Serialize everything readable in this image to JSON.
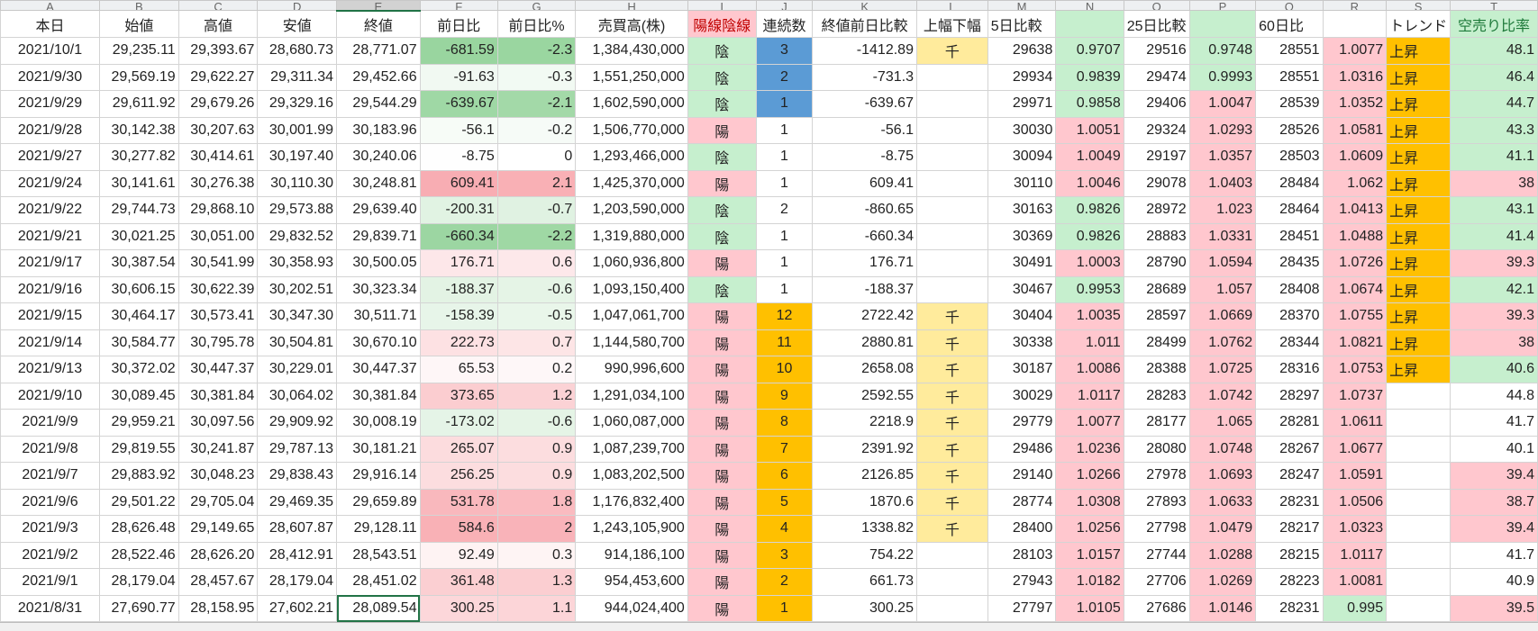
{
  "column_letters": [
    "A",
    "B",
    "C",
    "D",
    "E",
    "F",
    "G",
    "H",
    "I",
    "J",
    "K",
    "L",
    "M",
    "N",
    "O",
    "P",
    "Q",
    "R",
    "S",
    "T"
  ],
  "table": {
    "header": [
      "本日",
      "始値",
      "高値",
      "安値",
      "終値",
      "前日比",
      "前日比%",
      "売買高(株)",
      "陽線陰線",
      "連続数",
      "終値前日比較",
      "上幅下幅",
      "5日比較",
      null,
      "25日比較",
      null,
      "60日比",
      null,
      "トレンド",
      "空売り比率"
    ],
    "rows": [
      [
        "2021/10/1",
        "29,235.11",
        "29,393.67",
        "28,680.73",
        "28,771.07",
        "-681.59",
        "-2.3",
        "1,384,430,000",
        "陰",
        "3",
        "-1412.89",
        "千",
        "29638",
        "0.9707",
        "29516",
        "0.9748",
        "28551",
        "1.0077",
        "上昇",
        "48.1"
      ],
      [
        "2021/9/30",
        "29,569.19",
        "29,622.27",
        "29,311.34",
        "29,452.66",
        "-91.63",
        "-0.3",
        "1,551,250,000",
        "陰",
        "2",
        "-731.3",
        null,
        "29934",
        "0.9839",
        "29474",
        "0.9993",
        "28551",
        "1.0316",
        "上昇",
        "46.4"
      ],
      [
        "2021/9/29",
        "29,611.92",
        "29,679.26",
        "29,329.16",
        "29,544.29",
        "-639.67",
        "-2.1",
        "1,602,590,000",
        "陰",
        "1",
        "-639.67",
        null,
        "29971",
        "0.9858",
        "29406",
        "1.0047",
        "28539",
        "1.0352",
        "上昇",
        "44.7"
      ],
      [
        "2021/9/28",
        "30,142.38",
        "30,207.63",
        "30,001.99",
        "30,183.96",
        "-56.1",
        "-0.2",
        "1,506,770,000",
        "陽",
        "1",
        "-56.1",
        null,
        "30030",
        "1.0051",
        "29324",
        "1.0293",
        "28526",
        "1.0581",
        "上昇",
        "43.3"
      ],
      [
        "2021/9/27",
        "30,277.82",
        "30,414.61",
        "30,197.40",
        "30,240.06",
        "-8.75",
        "0",
        "1,293,466,000",
        "陰",
        "1",
        "-8.75",
        null,
        "30094",
        "1.0049",
        "29197",
        "1.0357",
        "28503",
        "1.0609",
        "上昇",
        "41.1"
      ],
      [
        "2021/9/24",
        "30,141.61",
        "30,276.38",
        "30,110.30",
        "30,248.81",
        "609.41",
        "2.1",
        "1,425,370,000",
        "陽",
        "1",
        "609.41",
        null,
        "30110",
        "1.0046",
        "29078",
        "1.0403",
        "28484",
        "1.062",
        "上昇",
        "38"
      ],
      [
        "2021/9/22",
        "29,744.73",
        "29,868.10",
        "29,573.88",
        "29,639.40",
        "-200.31",
        "-0.7",
        "1,203,590,000",
        "陰",
        "2",
        "-860.65",
        null,
        "30163",
        "0.9826",
        "28972",
        "1.023",
        "28464",
        "1.0413",
        "上昇",
        "43.1"
      ],
      [
        "2021/9/21",
        "30,021.25",
        "30,051.00",
        "29,832.52",
        "29,839.71",
        "-660.34",
        "-2.2",
        "1,319,880,000",
        "陰",
        "1",
        "-660.34",
        null,
        "30369",
        "0.9826",
        "28883",
        "1.0331",
        "28451",
        "1.0488",
        "上昇",
        "41.4"
      ],
      [
        "2021/9/17",
        "30,387.54",
        "30,541.99",
        "30,358.93",
        "30,500.05",
        "176.71",
        "0.6",
        "1,060,936,800",
        "陽",
        "1",
        "176.71",
        null,
        "30491",
        "1.0003",
        "28790",
        "1.0594",
        "28435",
        "1.0726",
        "上昇",
        "39.3"
      ],
      [
        "2021/9/16",
        "30,606.15",
        "30,622.39",
        "30,202.51",
        "30,323.34",
        "-188.37",
        "-0.6",
        "1,093,150,400",
        "陰",
        "1",
        "-188.37",
        null,
        "30467",
        "0.9953",
        "28689",
        "1.057",
        "28408",
        "1.0674",
        "上昇",
        "42.1"
      ],
      [
        "2021/9/15",
        "30,464.17",
        "30,573.41",
        "30,347.30",
        "30,511.71",
        "-158.39",
        "-0.5",
        "1,047,061,700",
        "陽",
        "12",
        "2722.42",
        "千",
        "30404",
        "1.0035",
        "28597",
        "1.0669",
        "28370",
        "1.0755",
        "上昇",
        "39.3"
      ],
      [
        "2021/9/14",
        "30,584.77",
        "30,795.78",
        "30,504.81",
        "30,670.10",
        "222.73",
        "0.7",
        "1,144,580,700",
        "陽",
        "11",
        "2880.81",
        "千",
        "30338",
        "1.011",
        "28499",
        "1.0762",
        "28344",
        "1.0821",
        "上昇",
        "38"
      ],
      [
        "2021/9/13",
        "30,372.02",
        "30,447.37",
        "30,229.01",
        "30,447.37",
        "65.53",
        "0.2",
        "990,996,600",
        "陽",
        "10",
        "2658.08",
        "千",
        "30187",
        "1.0086",
        "28388",
        "1.0725",
        "28316",
        "1.0753",
        "上昇",
        "40.6"
      ],
      [
        "2021/9/10",
        "30,089.45",
        "30,381.84",
        "30,064.02",
        "30,381.84",
        "373.65",
        "1.2",
        "1,291,034,100",
        "陽",
        "9",
        "2592.55",
        "千",
        "30029",
        "1.0117",
        "28283",
        "1.0742",
        "28297",
        "1.0737",
        null,
        "44.8"
      ],
      [
        "2021/9/9",
        "29,959.21",
        "30,097.56",
        "29,909.92",
        "30,008.19",
        "-173.02",
        "-0.6",
        "1,060,087,000",
        "陽",
        "8",
        "2218.9",
        "千",
        "29779",
        "1.0077",
        "28177",
        "1.065",
        "28281",
        "1.0611",
        null,
        "41.7"
      ],
      [
        "2021/9/8",
        "29,819.55",
        "30,241.87",
        "29,787.13",
        "30,181.21",
        "265.07",
        "0.9",
        "1,087,239,700",
        "陽",
        "7",
        "2391.92",
        "千",
        "29486",
        "1.0236",
        "28080",
        "1.0748",
        "28267",
        "1.0677",
        null,
        "40.1"
      ],
      [
        "2021/9/7",
        "29,883.92",
        "30,048.23",
        "29,838.43",
        "29,916.14",
        "256.25",
        "0.9",
        "1,083,202,500",
        "陽",
        "6",
        "2126.85",
        "千",
        "29140",
        "1.0266",
        "27978",
        "1.0693",
        "28247",
        "1.0591",
        null,
        "39.4"
      ],
      [
        "2021/9/6",
        "29,501.22",
        "29,705.04",
        "29,469.35",
        "29,659.89",
        "531.78",
        "1.8",
        "1,176,832,400",
        "陽",
        "5",
        "1870.6",
        "千",
        "28774",
        "1.0308",
        "27893",
        "1.0633",
        "28231",
        "1.0506",
        null,
        "38.7"
      ],
      [
        "2021/9/3",
        "28,626.48",
        "29,149.65",
        "28,607.87",
        "29,128.11",
        "584.6",
        "2",
        "1,243,105,900",
        "陽",
        "4",
        "1338.82",
        "千",
        "28400",
        "1.0256",
        "27798",
        "1.0479",
        "28217",
        "1.0323",
        null,
        "39.4"
      ],
      [
        "2021/9/2",
        "28,522.46",
        "28,626.20",
        "28,412.91",
        "28,543.51",
        "92.49",
        "0.3",
        "914,186,100",
        "陽",
        "3",
        "754.22",
        null,
        "28103",
        "1.0157",
        "27744",
        "1.0288",
        "28215",
        "1.0117",
        null,
        "41.7"
      ],
      [
        "2021/9/1",
        "28,179.04",
        "28,457.67",
        "28,179.04",
        "28,451.02",
        "361.48",
        "1.3",
        "954,453,600",
        "陽",
        "2",
        "661.73",
        null,
        "27943",
        "1.0182",
        "27706",
        "1.0269",
        "28223",
        "1.0081",
        null,
        "40.9"
      ],
      [
        "2021/8/31",
        "27,690.77",
        "28,158.95",
        "27,602.21",
        "28,089.54",
        "300.25",
        "1.1",
        "944,024,400",
        "陽",
        "1",
        "300.25",
        null,
        "27797",
        "1.0105",
        "27686",
        "1.0146",
        "28231",
        "0.995",
        null,
        "39.5"
      ]
    ]
  }
}
